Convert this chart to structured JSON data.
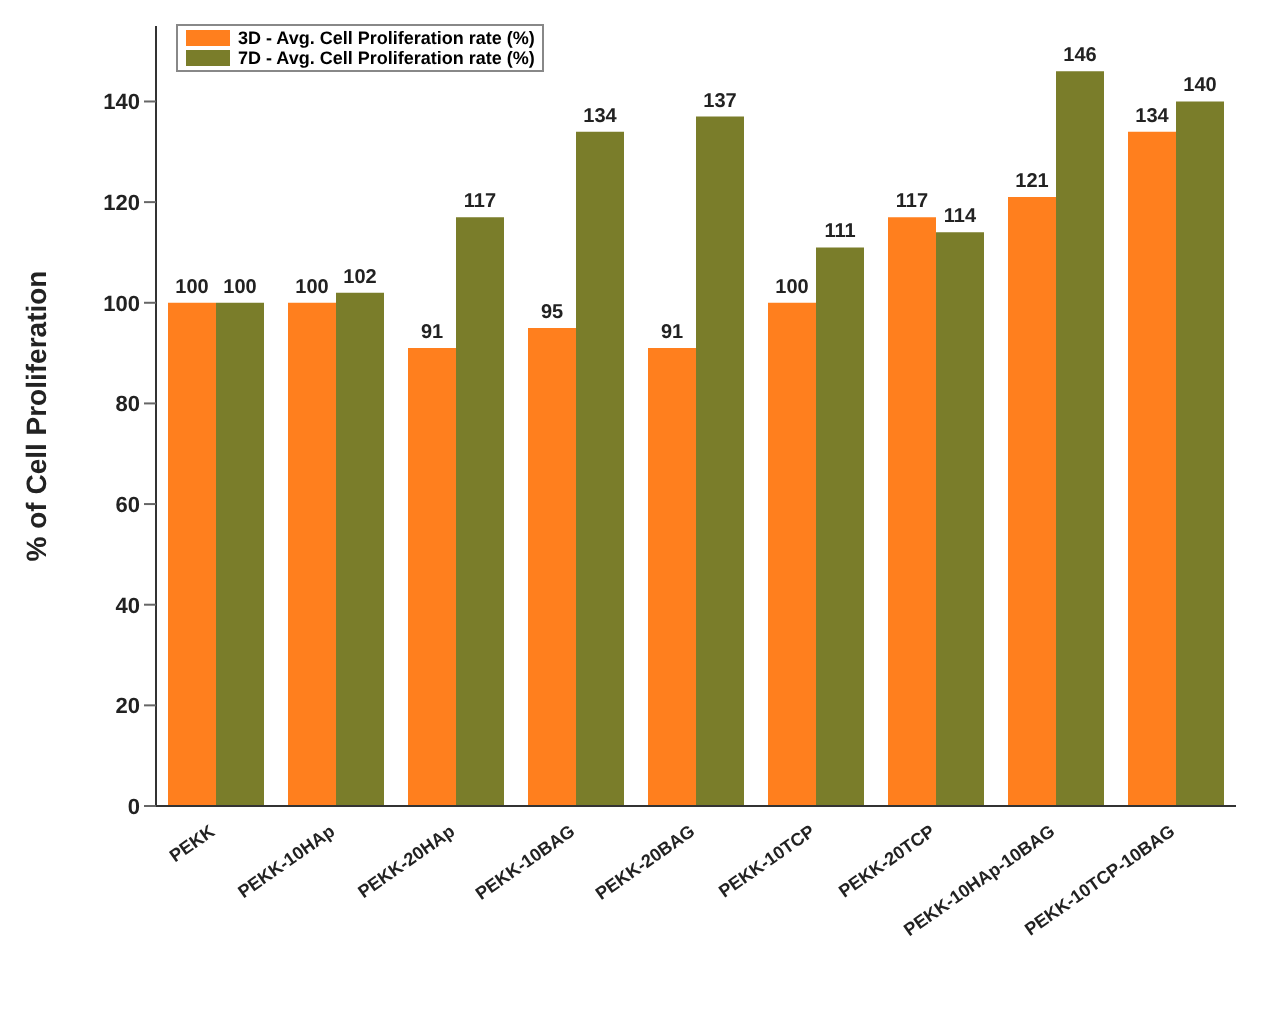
{
  "chart_data": {
    "type": "bar",
    "ylabel": "% of Cell Proliferation",
    "categories": [
      "PEKK",
      "PEKK-10HAp",
      "PEKK-20HAp",
      "PEKK-10BAG",
      "PEKK-20BAG",
      "PEKK-10TCP",
      "PEKK-20TCP",
      "PEKK-10HAp-10BAG",
      "PEKK-10TCP-10BAG"
    ],
    "series": [
      {
        "name": "3D - Avg. Cell Proliferation rate (%)",
        "color": "#ff7f1e",
        "values": [
          100,
          100,
          91,
          95,
          91,
          100,
          117,
          121,
          134
        ]
      },
      {
        "name": "7D - Avg. Cell Proliferation rate (%)",
        "color": "#7a7d2a",
        "values": [
          100,
          102,
          117,
          134,
          137,
          111,
          114,
          146,
          140
        ]
      }
    ],
    "ylim": [
      0,
      155
    ],
    "yticks": [
      0,
      20,
      40,
      60,
      80,
      100,
      120,
      140
    ],
    "grid": false,
    "legend": "top left",
    "data_labels": true
  }
}
